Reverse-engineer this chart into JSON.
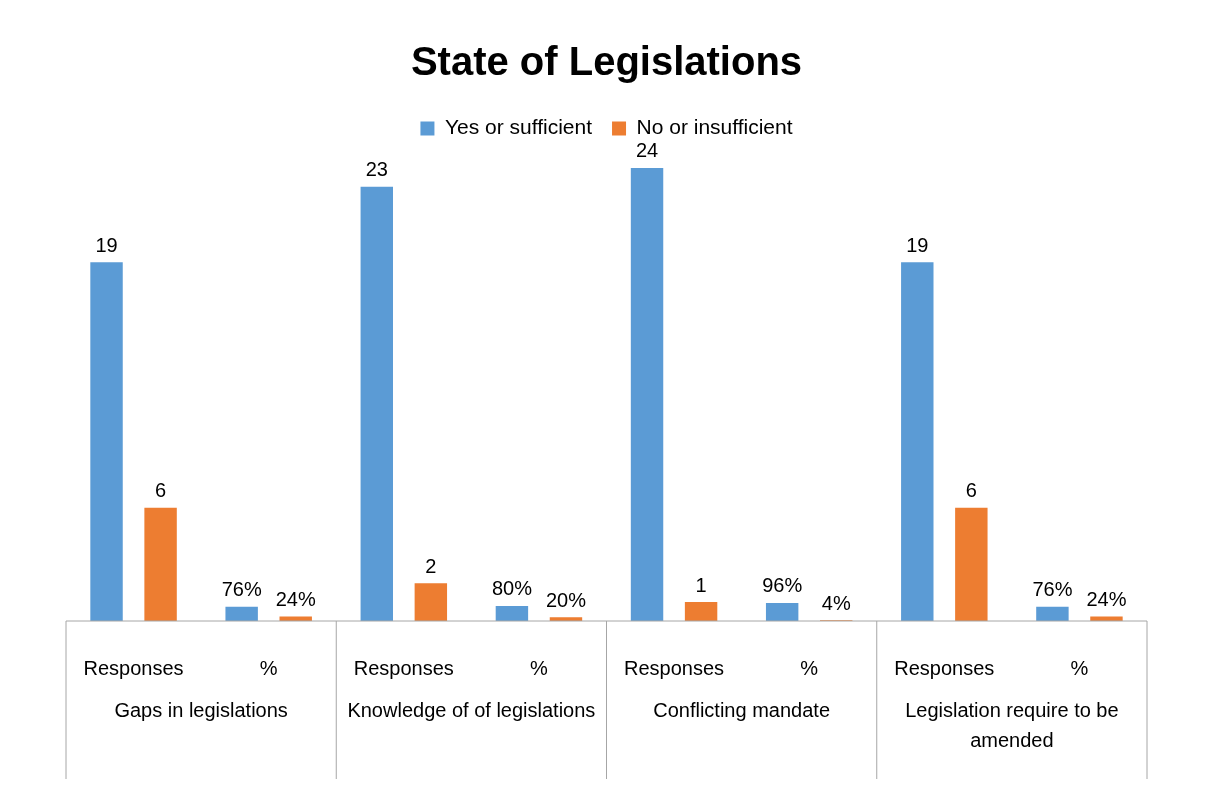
{
  "chart_data": {
    "type": "bar",
    "title": "State of Legislations",
    "categories": [
      "Responses",
      "%",
      "Responses",
      "%",
      "Responses",
      "%",
      "Responses",
      "%"
    ],
    "series": [
      {
        "name": "Yes or sufficient",
        "color": "#5b9bd5",
        "values": [
          19,
          0.76,
          23,
          0.8,
          24,
          0.96,
          19,
          0.76
        ],
        "value_labels": [
          "19",
          "76%",
          "23",
          "80%",
          "24",
          "96%",
          "19",
          "76%"
        ]
      },
      {
        "name": "No or insufficient",
        "color": "#ed7d31",
        "values": [
          6,
          0.24,
          2,
          0.2,
          1,
          0.04,
          6,
          0.24
        ],
        "value_labels": [
          "6",
          "24%",
          "2",
          "20%",
          "1",
          "4%",
          "6",
          "24%"
        ]
      }
    ],
    "annotations": [
      "Gaps in legislations",
      "Knowledge of of legislations",
      "Conflicting mandate",
      "Legislation require to be amended"
    ],
    "legend": "top",
    "grid": false
  }
}
